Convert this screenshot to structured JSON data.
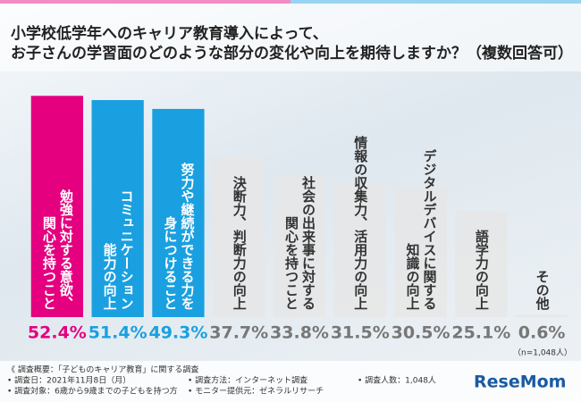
{
  "chart_data": {
    "type": "bar",
    "title": [
      "小学校低学年へのキャリア教育導入によって、",
      "お子さんの学習面のどのような部分の変化や向上を期待しますか？（複数回答可）"
    ],
    "categories": [
      [
        "勉強に対する意欲、",
        "関心を持つこと"
      ],
      [
        "コミュニケーション",
        "能力の向上"
      ],
      [
        "努力や継続ができる力を",
        "身につけること"
      ],
      [
        "決断力、判断力の向上"
      ],
      [
        "社会の出来事に対する",
        "関心を持つこと"
      ],
      [
        "情報の収集力、活用力の向上"
      ],
      [
        "デジタルデバイスに関する",
        "知識の向上"
      ],
      [
        "語学力の向上"
      ],
      [
        "その他"
      ]
    ],
    "values": [
      52.4,
      51.4,
      49.3,
      37.7,
      33.8,
      31.5,
      30.5,
      25.1,
      0.6
    ],
    "value_labels": [
      "52.4%",
      "51.4%",
      "49.3%",
      "37.7%",
      "33.8%",
      "31.5%",
      "30.5%",
      "25.1%",
      "0.6%"
    ],
    "colors": [
      "#e4007f",
      "#1aa0e0",
      "#1aa0e0",
      "#e6e6e6",
      "#e6e6e6",
      "#e6e6e6",
      "#e6e6e6",
      "#e6e6e6",
      "#e6e6e6"
    ],
    "label_colors": [
      "#e4007f",
      "#1aa0e0",
      "#1aa0e0",
      "#777777",
      "#777777",
      "#777777",
      "#777777",
      "#777777",
      "#777777"
    ],
    "ylim": [
      0,
      55
    ],
    "annotation": "（n=1,048人）",
    "notes": [
      "《 調査概要：「子どものキャリア教育」に関する調査",
      "• 調査日：2021年11月8日（月）",
      "• 調査対象：6歳から9歳までの子どもを持つ方",
      "• 調査方法：インターネット調査",
      "• モニター提供元：ゼネラルリサーチ",
      "• 調査人数：1,048人"
    ],
    "logo": "ReseMom"
  }
}
